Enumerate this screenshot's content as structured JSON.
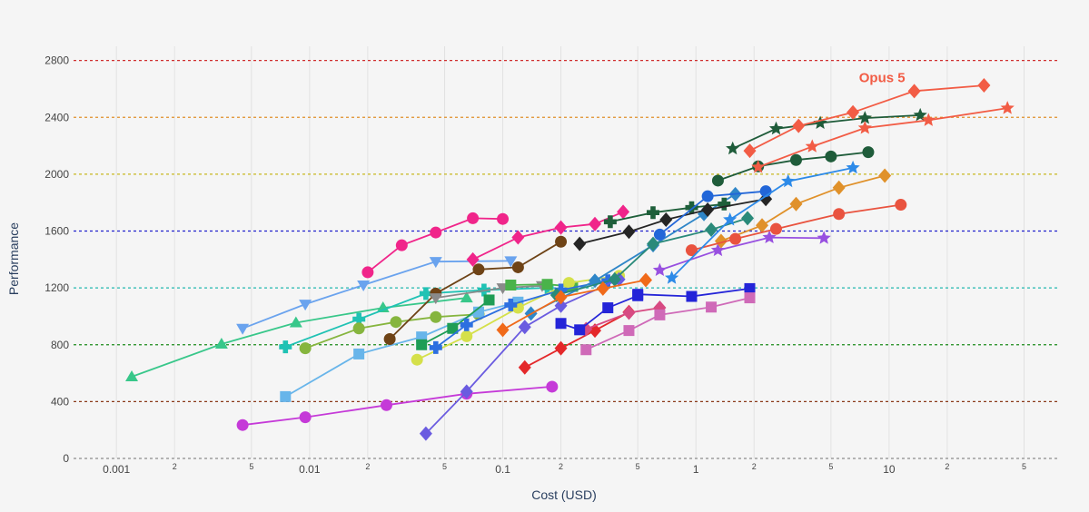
{
  "chart_data": {
    "type": "scatter",
    "title": "",
    "xlabel": "Cost (USD)",
    "ylabel": "Performance",
    "x_scale": "log",
    "xlim": [
      0.0006,
      75
    ],
    "ylim": [
      0,
      2900
    ],
    "grid": true,
    "legend": "none",
    "x_ticks": [
      {
        "value": 0.001,
        "label": "0.001",
        "major": true
      },
      {
        "value": 0.002,
        "label": "2",
        "major": false
      },
      {
        "value": 0.005,
        "label": "5",
        "major": false
      },
      {
        "value": 0.01,
        "label": "0.01",
        "major": true
      },
      {
        "value": 0.02,
        "label": "2",
        "major": false
      },
      {
        "value": 0.05,
        "label": "5",
        "major": false
      },
      {
        "value": 0.1,
        "label": "0.1",
        "major": true
      },
      {
        "value": 0.2,
        "label": "2",
        "major": false
      },
      {
        "value": 0.5,
        "label": "5",
        "major": false
      },
      {
        "value": 1,
        "label": "1",
        "major": true
      },
      {
        "value": 2,
        "label": "2",
        "major": false
      },
      {
        "value": 5,
        "label": "5",
        "major": false
      },
      {
        "value": 10,
        "label": "10",
        "major": true
      },
      {
        "value": 20,
        "label": "2",
        "major": false
      },
      {
        "value": 50,
        "label": "5",
        "major": false
      }
    ],
    "y_ticks": [
      {
        "value": 0,
        "label": "0",
        "line_color": "#8c8c8c"
      },
      {
        "value": 400,
        "label": "400",
        "line_color": "#8b3a1a"
      },
      {
        "value": 800,
        "label": "800",
        "line_color": "#1a8a1a"
      },
      {
        "value": 1200,
        "label": "1200",
        "line_color": "#22b8b0"
      },
      {
        "value": 1600,
        "label": "1600",
        "line_color": "#2222cc"
      },
      {
        "value": 2000,
        "label": "2000",
        "line_color": "#c8b820"
      },
      {
        "value": 2400,
        "label": "2400",
        "line_color": "#e0902a"
      },
      {
        "value": 2800,
        "label": "2800",
        "line_color": "#d03030"
      }
    ],
    "annotations": [
      {
        "text": "Opus 5",
        "x": 9.2,
        "y": 2680,
        "color": "#f25c45"
      }
    ],
    "series": [
      {
        "color": "#c53ad8",
        "marker": "circle",
        "x": [
          0.0045,
          0.0095,
          0.025,
          0.065,
          0.18
        ],
        "y": [
          235,
          290,
          375,
          455,
          505
        ]
      },
      {
        "color": "#38c78a",
        "marker": "triangle-up",
        "x": [
          0.0012,
          0.0035,
          0.0085,
          0.024,
          0.065
        ],
        "y": [
          575,
          805,
          955,
          1060,
          1130
        ]
      },
      {
        "color": "#6aa3ee",
        "marker": "triangle-down",
        "x": [
          0.0045,
          0.0095,
          0.019,
          0.045,
          0.11
        ],
        "y": [
          915,
          1085,
          1220,
          1385,
          1390
        ]
      },
      {
        "color": "#f0258a",
        "marker": "circle",
        "x": [
          0.02,
          0.03,
          0.045,
          0.07,
          0.1
        ],
        "y": [
          1310,
          1500,
          1590,
          1690,
          1685
        ]
      },
      {
        "color": "#20c2b4",
        "marker": "cross",
        "x": [
          0.0075,
          0.018,
          0.04,
          0.08,
          0.17
        ],
        "y": [
          785,
          980,
          1160,
          1185,
          1200
        ]
      },
      {
        "color": "#86b53e",
        "marker": "circle",
        "x": [
          0.0095,
          0.018,
          0.028,
          0.045,
          0.075
        ],
        "y": [
          775,
          915,
          960,
          995,
          1015
        ]
      },
      {
        "color": "#68b5ea",
        "marker": "square",
        "x": [
          0.0075,
          0.018,
          0.038,
          0.075,
          0.12
        ],
        "y": [
          435,
          735,
          855,
          1030,
          1100
        ]
      },
      {
        "color": "#6e4316",
        "marker": "circle",
        "x": [
          0.026,
          0.045,
          0.075,
          0.12,
          0.2
        ],
        "y": [
          840,
          1160,
          1330,
          1345,
          1525
        ]
      },
      {
        "color": "#8a8a8a",
        "marker": "triangle-down",
        "x": [
          0.045,
          0.1,
          0.16
        ],
        "y": [
          1130,
          1200,
          1215
        ]
      },
      {
        "color": "#1f9d55",
        "marker": "square",
        "x": [
          0.038,
          0.055,
          0.085
        ],
        "y": [
          800,
          915,
          1115
        ]
      },
      {
        "color": "#4ab34a",
        "marker": "square",
        "x": [
          0.11,
          0.17,
          0.23
        ],
        "y": [
          1220,
          1225,
          1210
        ]
      },
      {
        "color": "#d5e04a",
        "marker": "circle",
        "x": [
          0.036,
          0.065,
          0.12,
          0.22,
          0.4
        ],
        "y": [
          695,
          860,
          1060,
          1235,
          1285
        ]
      },
      {
        "color": "#2d6fe0",
        "marker": "cross",
        "x": [
          0.045,
          0.065,
          0.11,
          0.2,
          0.35
        ],
        "y": [
          780,
          940,
          1080,
          1185,
          1250
        ]
      },
      {
        "color": "#6a5be0",
        "marker": "diamond",
        "x": [
          0.04,
          0.065,
          0.13,
          0.2,
          0.4
        ],
        "y": [
          175,
          470,
          925,
          1075,
          1260
        ]
      },
      {
        "color": "#2f86c8",
        "marker": "diamond",
        "x": [
          0.14,
          0.3,
          0.6,
          1.1,
          1.6
        ],
        "y": [
          1020,
          1250,
          1500,
          1720,
          1860
        ]
      },
      {
        "color": "#2a8a7a",
        "marker": "diamond",
        "x": [
          0.19,
          0.38,
          0.6,
          1.2,
          1.85
        ],
        "y": [
          1150,
          1260,
          1510,
          1610,
          1690
        ]
      },
      {
        "color": "#e4282a",
        "marker": "diamond",
        "x": [
          0.13,
          0.2,
          0.3,
          0.45
        ],
        "y": [
          640,
          775,
          900,
          1030
        ]
      },
      {
        "color": "#d74a82",
        "marker": "diamond",
        "x": [
          0.27,
          0.45,
          0.65
        ],
        "y": [
          910,
          1025,
          1060
        ]
      },
      {
        "color": "#f06a1a",
        "marker": "diamond",
        "x": [
          0.1,
          0.2,
          0.33,
          0.55
        ],
        "y": [
          905,
          1135,
          1195,
          1255
        ]
      },
      {
        "color": "#2424d8",
        "marker": "square",
        "x": [
          0.2,
          0.25,
          0.35,
          0.5
        ],
        "y": [
          950,
          905,
          1060,
          1145
        ]
      },
      {
        "color": "#2424d8",
        "marker": "square",
        "x": [
          0.5,
          0.95,
          1.9
        ],
        "y": [
          1155,
          1140,
          1195
        ]
      },
      {
        "color": "#cf6ab8",
        "marker": "square",
        "x": [
          0.27,
          0.45,
          0.65,
          1.2,
          1.9
        ],
        "y": [
          765,
          900,
          1010,
          1065,
          1130
        ]
      },
      {
        "color": "#9850e0",
        "marker": "star",
        "x": [
          0.65,
          1.3,
          2.4,
          4.6
        ],
        "y": [
          1325,
          1465,
          1555,
          1550
        ]
      },
      {
        "color": "#e0912a",
        "marker": "diamond",
        "x": [
          1.35,
          2.2,
          3.3,
          5.5,
          9.5
        ],
        "y": [
          1530,
          1640,
          1790,
          1905,
          1990
        ]
      },
      {
        "color": "#e9533f",
        "marker": "circle",
        "x": [
          0.95,
          1.6,
          2.6,
          5.5,
          11.5
        ],
        "y": [
          1465,
          1545,
          1615,
          1720,
          1785
        ]
      },
      {
        "color": "#f0258a",
        "marker": "diamond",
        "x": [
          0.07,
          0.12,
          0.2,
          0.3,
          0.42
        ],
        "y": [
          1400,
          1555,
          1625,
          1650,
          1735
        ]
      },
      {
        "color": "#1e5f3a",
        "marker": "cross",
        "x": [
          0.36,
          0.6,
          0.95,
          1.4
        ],
        "y": [
          1665,
          1730,
          1765,
          1790
        ]
      },
      {
        "color": "#252525",
        "marker": "diamond",
        "x": [
          0.25,
          0.45,
          0.7,
          1.15,
          2.3
        ],
        "y": [
          1510,
          1595,
          1680,
          1750,
          1825
        ]
      },
      {
        "color": "#2266d8",
        "marker": "circle",
        "x": [
          0.65,
          1.15,
          2.3
        ],
        "y": [
          1575,
          1845,
          1880
        ]
      },
      {
        "color": "#2d8ae8",
        "marker": "star",
        "x": [
          0.75,
          1.5,
          3.0,
          6.5
        ],
        "y": [
          1270,
          1680,
          1950,
          2045
        ]
      },
      {
        "color": "#1f5c3a",
        "marker": "circle",
        "x": [
          1.3,
          2.1,
          3.3,
          5.0,
          7.8
        ],
        "y": [
          1955,
          2055,
          2100,
          2125,
          2155
        ]
      },
      {
        "color": "#1f5c3a",
        "marker": "star",
        "x": [
          1.55,
          2.6,
          4.4,
          7.5,
          14.5
        ],
        "y": [
          2180,
          2320,
          2360,
          2395,
          2415
        ]
      },
      {
        "color": "#f25c45",
        "marker": "diamond",
        "x": [
          1.9,
          3.4,
          6.5,
          13.5,
          31
        ],
        "y": [
          2165,
          2340,
          2435,
          2585,
          2625
        ]
      },
      {
        "color": "#f25c45",
        "marker": "star",
        "x": [
          2.1,
          4.0,
          7.5,
          16,
          41
        ],
        "y": [
          2050,
          2195,
          2325,
          2380,
          2465
        ]
      }
    ]
  }
}
